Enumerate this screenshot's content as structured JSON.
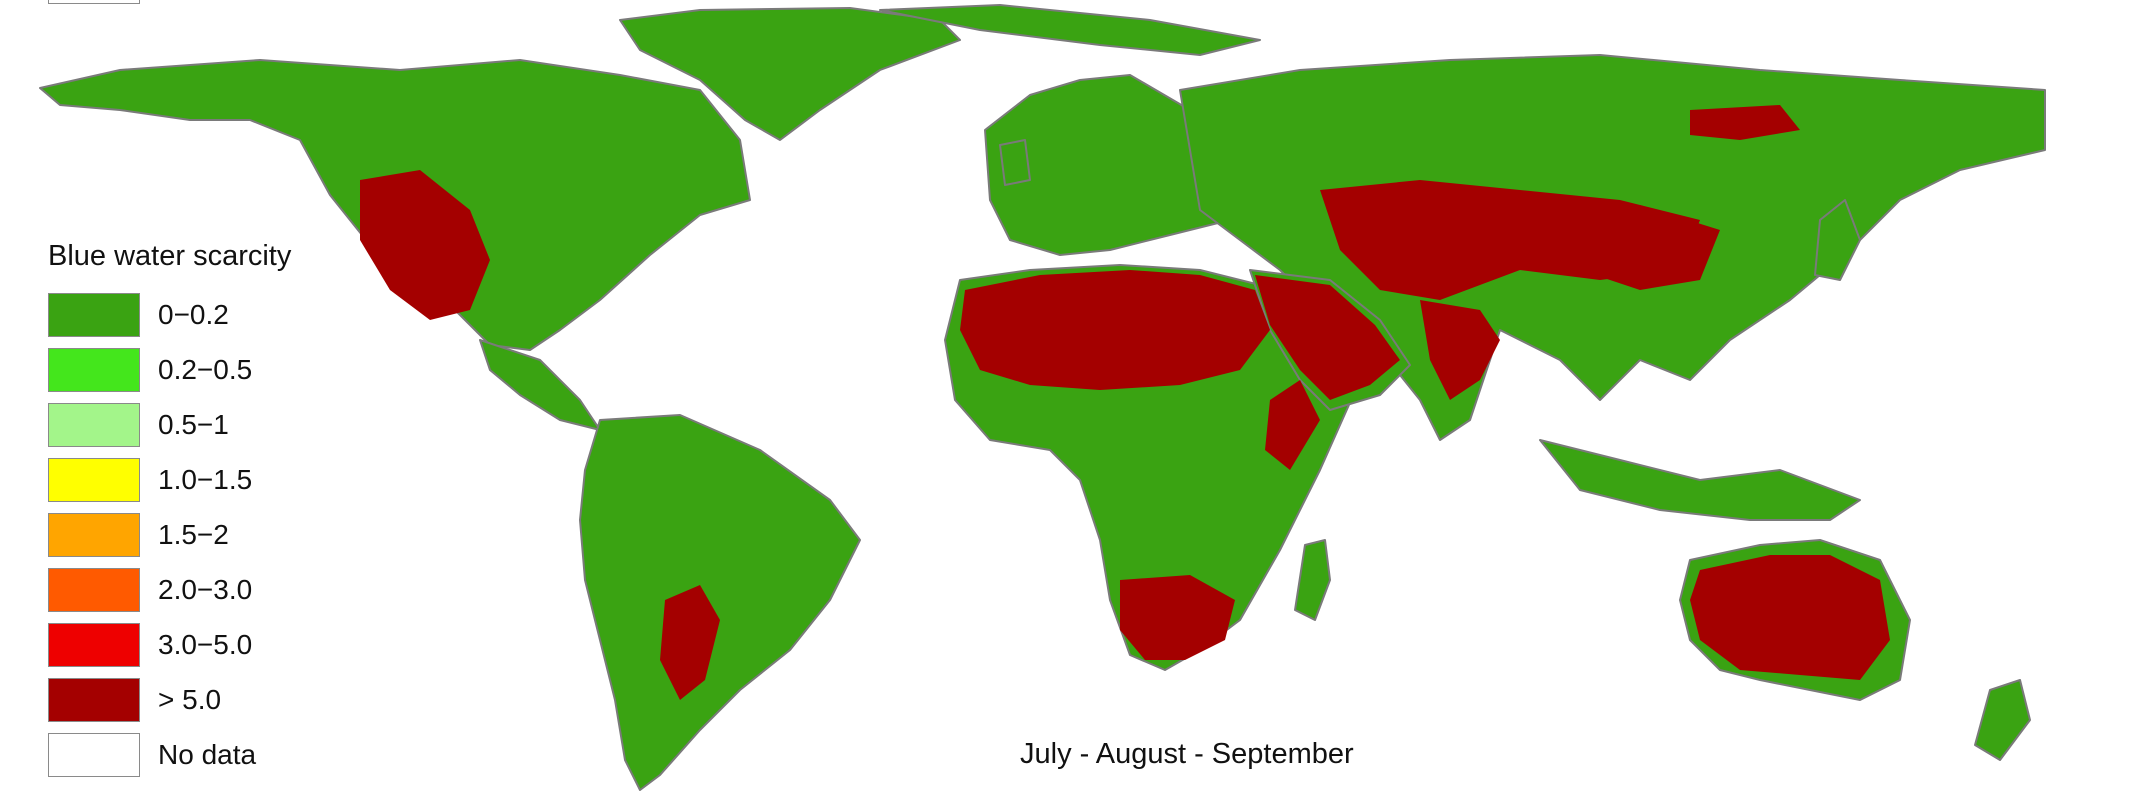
{
  "legend": {
    "title": "Blue water scarcity",
    "items": [
      {
        "label": "0−0.2",
        "color": "#3aa312"
      },
      {
        "label": "0.2−0.5",
        "color": "#44e61c"
      },
      {
        "label": "0.5−1",
        "color": "#a3f58a"
      },
      {
        "label": "1.0−1.5",
        "color": "#ffff00"
      },
      {
        "label": "1.5−2",
        "color": "#ffa500"
      },
      {
        "label": "2.0−3.0",
        "color": "#ff5a00"
      },
      {
        "label": "3.0−5.0",
        "color": "#ee0000"
      },
      {
        "label": "> 5.0",
        "color": "#a40000"
      },
      {
        "label": "No data",
        "color": "#ffffff"
      }
    ]
  },
  "caption": "July - August - September",
  "colors": {
    "land_base": "#3aa312",
    "high_scarcity": "#a40000",
    "coastline_grey": "#7a7a7a",
    "ice_white": "#ffffff"
  }
}
